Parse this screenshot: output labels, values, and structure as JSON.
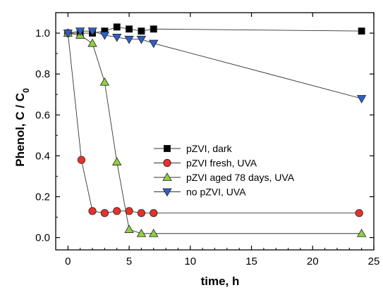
{
  "chart_data": {
    "type": "line",
    "xlabel": "time, h",
    "ylabel_main": "Phenol, C / C",
    "ylabel_sub": "0",
    "xlim": [
      -1,
      25
    ],
    "ylim": [
      -0.06,
      1.1
    ],
    "xticks": [
      0,
      5,
      10,
      15,
      20,
      25
    ],
    "yticks": [
      0.0,
      0.2,
      0.4,
      0.6,
      0.8,
      1.0
    ],
    "xtick_labels": [
      "0",
      "5",
      "10",
      "15",
      "20",
      "25"
    ],
    "ytick_labels": [
      "0.0",
      "0.2",
      "0.4",
      "0.6",
      "0.8",
      "1.0"
    ],
    "grid": false,
    "legend_position": "lower-center",
    "series": [
      {
        "name": "pZVI, dark",
        "marker": "square",
        "color": "#000000",
        "x": [
          0,
          1,
          2,
          3,
          4,
          5,
          6,
          7,
          24
        ],
        "y": [
          1.0,
          1.0,
          1.0,
          1.01,
          1.03,
          1.02,
          1.01,
          1.02,
          1.01
        ]
      },
      {
        "name": "pZVI fresh, UVA",
        "marker": "circle",
        "color": "#e8312a",
        "x": [
          0,
          1.1,
          2,
          3,
          4,
          5,
          6,
          7,
          23.8
        ],
        "y": [
          1.0,
          0.38,
          0.13,
          0.12,
          0.13,
          0.13,
          0.12,
          0.12,
          0.12
        ]
      },
      {
        "name": "pZVI aged 78 days, UVA",
        "marker": "triangle-up",
        "color": "#8fd13f",
        "x": [
          0,
          1,
          2,
          3,
          4,
          5,
          6,
          7,
          24
        ],
        "y": [
          1.0,
          0.99,
          0.95,
          0.76,
          0.37,
          0.04,
          0.02,
          0.02,
          0.02
        ]
      },
      {
        "name": "no pZVI, UVA",
        "marker": "triangle-down",
        "color": "#2d5fc7",
        "x": [
          0,
          1,
          2,
          3,
          4,
          5,
          6,
          7,
          24
        ],
        "y": [
          1.0,
          1.01,
          1.01,
          0.99,
          0.98,
          0.97,
          0.97,
          0.95,
          0.68
        ]
      }
    ]
  }
}
